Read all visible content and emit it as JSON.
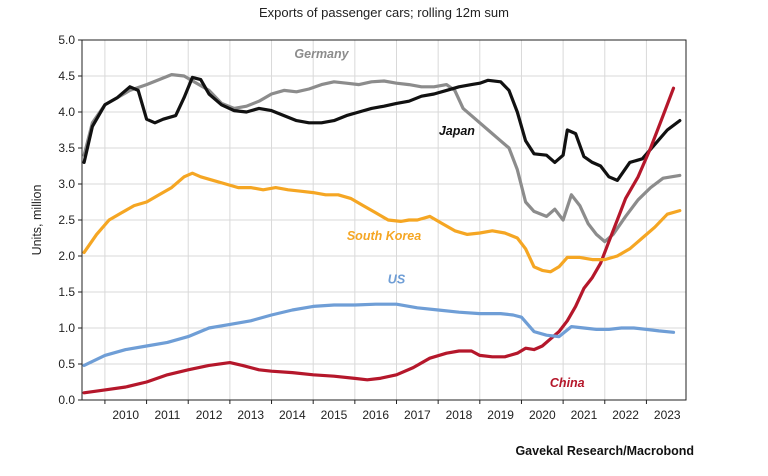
{
  "chart_data": {
    "type": "line",
    "title": "Exports of passenger cars; rolling 12m sum",
    "ylabel": "Units, million",
    "xlabel": "",
    "source": "Gavekal Research/Macrobond",
    "x_ticks": [
      "2010",
      "2011",
      "2012",
      "2013",
      "2014",
      "2015",
      "2016",
      "2017",
      "2018",
      "2019",
      "2020",
      "2021",
      "2022",
      "2023"
    ],
    "y_ticks": [
      "0.0",
      "0.5",
      "1.0",
      "1.5",
      "2.0",
      "2.5",
      "3.0",
      "3.5",
      "4.0",
      "4.5",
      "5.0"
    ],
    "xlim": [
      2009.45,
      2023.95
    ],
    "ylim": [
      0,
      5
    ],
    "grid": true,
    "series": [
      {
        "name": "Germany",
        "color": "#8c8c8c",
        "x": [
          2009.5,
          2009.7,
          2010.0,
          2010.3,
          2010.6,
          2011.0,
          2011.3,
          2011.6,
          2011.9,
          2012.2,
          2012.5,
          2012.8,
          2013.1,
          2013.4,
          2013.7,
          2014.0,
          2014.3,
          2014.6,
          2014.9,
          2015.2,
          2015.5,
          2015.8,
          2016.1,
          2016.4,
          2016.7,
          2017.0,
          2017.3,
          2017.6,
          2017.9,
          2018.2,
          2018.4,
          2018.6,
          2018.9,
          2019.2,
          2019.5,
          2019.7,
          2019.9,
          2020.1,
          2020.3,
          2020.6,
          2020.8,
          2021.0,
          2021.2,
          2021.4,
          2021.6,
          2021.8,
          2022.0,
          2022.2,
          2022.5,
          2022.8,
          2023.1,
          2023.4,
          2023.6,
          2023.8
        ],
        "values": [
          3.4,
          3.85,
          4.1,
          4.2,
          4.3,
          4.38,
          4.45,
          4.52,
          4.5,
          4.4,
          4.3,
          4.12,
          4.05,
          4.08,
          4.15,
          4.25,
          4.3,
          4.28,
          4.32,
          4.38,
          4.42,
          4.4,
          4.38,
          4.42,
          4.43,
          4.4,
          4.38,
          4.35,
          4.35,
          4.38,
          4.3,
          4.05,
          3.9,
          3.75,
          3.6,
          3.5,
          3.2,
          2.75,
          2.62,
          2.55,
          2.65,
          2.5,
          2.85,
          2.7,
          2.45,
          2.3,
          2.2,
          2.3,
          2.55,
          2.78,
          2.95,
          3.08,
          3.1,
          3.12
        ]
      },
      {
        "name": "Japan",
        "color": "#111111",
        "x": [
          2009.5,
          2009.7,
          2010.0,
          2010.3,
          2010.6,
          2010.8,
          2011.0,
          2011.2,
          2011.4,
          2011.7,
          2011.9,
          2012.1,
          2012.3,
          2012.5,
          2012.8,
          2013.1,
          2013.4,
          2013.7,
          2014.0,
          2014.3,
          2014.6,
          2014.9,
          2015.2,
          2015.5,
          2015.8,
          2016.1,
          2016.4,
          2016.7,
          2017.0,
          2017.3,
          2017.6,
          2017.9,
          2018.2,
          2018.5,
          2018.8,
          2019.0,
          2019.2,
          2019.5,
          2019.7,
          2019.9,
          2020.1,
          2020.3,
          2020.6,
          2020.8,
          2021.0,
          2021.1,
          2021.3,
          2021.5,
          2021.7,
          2021.9,
          2022.1,
          2022.3,
          2022.6,
          2022.9,
          2023.2,
          2023.5,
          2023.8
        ],
        "values": [
          3.3,
          3.8,
          4.1,
          4.2,
          4.35,
          4.3,
          3.9,
          3.85,
          3.9,
          3.95,
          4.2,
          4.48,
          4.45,
          4.25,
          4.1,
          4.02,
          4.0,
          4.05,
          4.02,
          3.95,
          3.88,
          3.85,
          3.85,
          3.88,
          3.95,
          4.0,
          4.05,
          4.08,
          4.12,
          4.15,
          4.22,
          4.25,
          4.3,
          4.35,
          4.38,
          4.4,
          4.44,
          4.42,
          4.3,
          4.0,
          3.6,
          3.42,
          3.4,
          3.3,
          3.4,
          3.75,
          3.7,
          3.38,
          3.3,
          3.25,
          3.1,
          3.05,
          3.3,
          3.35,
          3.55,
          3.75,
          3.88
        ]
      },
      {
        "name": "China",
        "color": "#b5172b",
        "x": [
          2009.5,
          2010.0,
          2010.5,
          2011.0,
          2011.5,
          2012.0,
          2012.5,
          2013.0,
          2013.3,
          2013.7,
          2014.0,
          2014.5,
          2015.0,
          2015.5,
          2016.0,
          2016.3,
          2016.6,
          2017.0,
          2017.4,
          2017.8,
          2018.2,
          2018.5,
          2018.8,
          2019.0,
          2019.3,
          2019.6,
          2019.9,
          2020.1,
          2020.3,
          2020.5,
          2020.7,
          2020.9,
          2021.1,
          2021.3,
          2021.5,
          2021.7,
          2021.9,
          2022.1,
          2022.3,
          2022.5,
          2022.8,
          2023.1,
          2023.4,
          2023.65
        ],
        "values": [
          0.1,
          0.14,
          0.18,
          0.25,
          0.35,
          0.42,
          0.48,
          0.52,
          0.48,
          0.42,
          0.4,
          0.38,
          0.35,
          0.33,
          0.3,
          0.28,
          0.3,
          0.35,
          0.45,
          0.58,
          0.65,
          0.68,
          0.68,
          0.62,
          0.6,
          0.6,
          0.65,
          0.72,
          0.7,
          0.75,
          0.85,
          0.95,
          1.1,
          1.3,
          1.55,
          1.7,
          1.9,
          2.2,
          2.5,
          2.8,
          3.1,
          3.5,
          3.95,
          4.33
        ]
      },
      {
        "name": "South Korea",
        "color": "#f5a623",
        "x": [
          2009.5,
          2009.8,
          2010.1,
          2010.4,
          2010.7,
          2011.0,
          2011.3,
          2011.6,
          2011.9,
          2012.1,
          2012.3,
          2012.6,
          2012.9,
          2013.2,
          2013.5,
          2013.8,
          2014.1,
          2014.4,
          2014.7,
          2015.0,
          2015.3,
          2015.6,
          2015.9,
          2016.2,
          2016.5,
          2016.8,
          2017.1,
          2017.3,
          2017.5,
          2017.8,
          2018.1,
          2018.4,
          2018.7,
          2019.0,
          2019.3,
          2019.6,
          2019.9,
          2020.1,
          2020.3,
          2020.5,
          2020.7,
          2020.9,
          2021.1,
          2021.4,
          2021.7,
          2022.0,
          2022.3,
          2022.6,
          2022.9,
          2023.2,
          2023.5,
          2023.8
        ],
        "values": [
          2.05,
          2.3,
          2.5,
          2.6,
          2.7,
          2.75,
          2.85,
          2.95,
          3.1,
          3.15,
          3.1,
          3.05,
          3.0,
          2.95,
          2.95,
          2.92,
          2.95,
          2.92,
          2.9,
          2.88,
          2.85,
          2.85,
          2.8,
          2.7,
          2.6,
          2.5,
          2.48,
          2.5,
          2.5,
          2.55,
          2.45,
          2.35,
          2.3,
          2.32,
          2.35,
          2.32,
          2.25,
          2.1,
          1.85,
          1.8,
          1.78,
          1.85,
          1.98,
          1.98,
          1.95,
          1.95,
          2.0,
          2.1,
          2.25,
          2.4,
          2.58,
          2.63
        ]
      },
      {
        "name": "US",
        "color": "#6f9ed6",
        "x": [
          2009.5,
          2010.0,
          2010.5,
          2011.0,
          2011.5,
          2012.0,
          2012.5,
          2013.0,
          2013.5,
          2014.0,
          2014.5,
          2015.0,
          2015.5,
          2016.0,
          2016.5,
          2017.0,
          2017.5,
          2018.0,
          2018.5,
          2019.0,
          2019.5,
          2019.8,
          2020.0,
          2020.3,
          2020.6,
          2020.9,
          2021.2,
          2021.5,
          2021.8,
          2022.1,
          2022.4,
          2022.7,
          2023.0,
          2023.3,
          2023.65
        ],
        "values": [
          0.48,
          0.62,
          0.7,
          0.75,
          0.8,
          0.88,
          1.0,
          1.05,
          1.1,
          1.18,
          1.25,
          1.3,
          1.32,
          1.32,
          1.33,
          1.33,
          1.28,
          1.25,
          1.22,
          1.2,
          1.2,
          1.18,
          1.15,
          0.95,
          0.9,
          0.88,
          1.02,
          1.0,
          0.98,
          0.98,
          1.0,
          1.0,
          0.98,
          0.96,
          0.94
        ]
      }
    ],
    "annotations": [
      {
        "text": "Germany",
        "series": "Germany",
        "x": 2015.2,
        "y": 4.75
      },
      {
        "text": "Japan",
        "series": "Japan",
        "x": 2018.45,
        "y": 3.68
      },
      {
        "text": "South Korea",
        "series": "South Korea",
        "x": 2016.7,
        "y": 2.22
      },
      {
        "text": "US",
        "series": "US",
        "x": 2017.0,
        "y": 1.62
      },
      {
        "text": "China",
        "series": "China",
        "x": 2021.1,
        "y": 0.18
      }
    ]
  }
}
